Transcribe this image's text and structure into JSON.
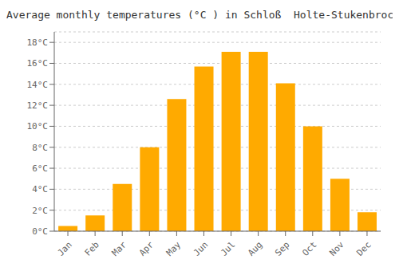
{
  "chart_data": {
    "type": "bar",
    "title": "Average monthly temperatures (°C ) in Schloß  Holte-Stukenbrock",
    "categories": [
      "Jan",
      "Feb",
      "Mar",
      "Apr",
      "May",
      "Jun",
      "Jul",
      "Aug",
      "Sep",
      "Oct",
      "Nov",
      "Dec"
    ],
    "values": [
      0.5,
      1.5,
      4.5,
      8.0,
      12.6,
      15.7,
      17.1,
      17.1,
      14.1,
      10.0,
      5.0,
      1.8
    ],
    "color": "#FFAA00",
    "ylim": [
      0,
      19
    ],
    "yticks": [
      {
        "value": 0,
        "label": "0°C"
      },
      {
        "value": 2,
        "label": "2°C"
      },
      {
        "value": 4,
        "label": "4°C"
      },
      {
        "value": 6,
        "label": "6°C"
      },
      {
        "value": 8,
        "label": "8°C"
      },
      {
        "value": 10,
        "label": "10°C"
      },
      {
        "value": 12,
        "label": "12°C"
      },
      {
        "value": 14,
        "label": "14°C"
      },
      {
        "value": 16,
        "label": "16°C"
      },
      {
        "value": 18,
        "label": "18°C"
      }
    ],
    "grid": true
  }
}
